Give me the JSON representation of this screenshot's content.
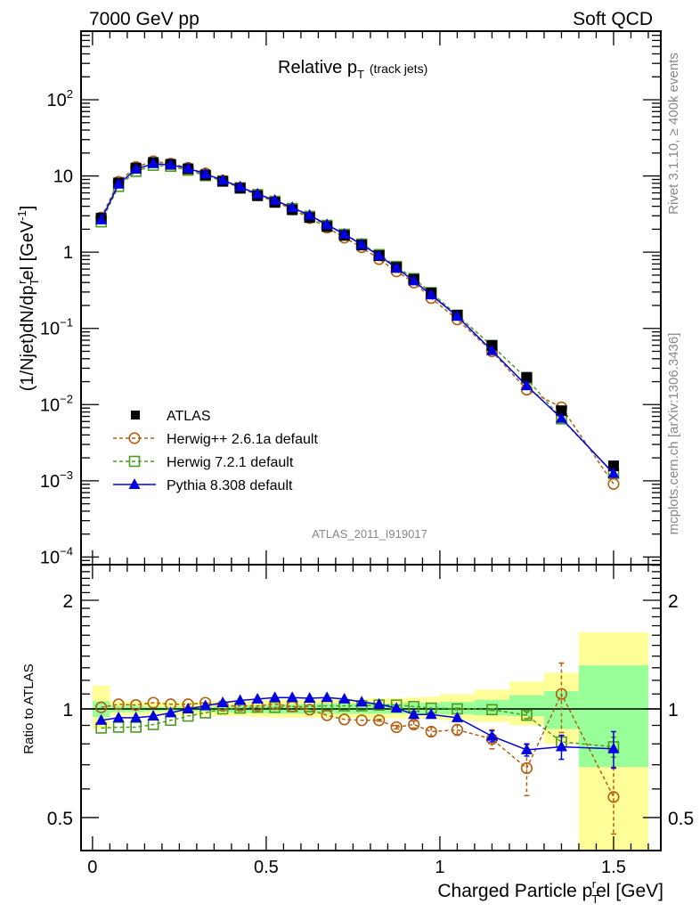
{
  "header": {
    "left": "7000 GeV pp",
    "right": "Soft QCD"
  },
  "side_text": {
    "rivet": "Rivet 3.1.10, ≥ 400k events",
    "mcplots": "mcplots.cern.ch [arXiv:1306.3436]"
  },
  "chart_data": [
    {
      "type": "line",
      "title": "Relative p_T (track jets)",
      "title_main": "Relative p",
      "title_sub": "T",
      "title_extra": "(track jets)",
      "xlabel": "Charged Particle p_T^rel [GeV]",
      "ylabel": "(1/Njet)dN/dp_T^rel [GeV^-1]",
      "yscale": "log",
      "xlim": [
        -0.033,
        1.636
      ],
      "ylim": [
        7.94e-05,
        794
      ],
      "ytick_labels": [
        "10^-4",
        "10^-3",
        "10^-2",
        "10^-1",
        "1",
        "10",
        "10^2"
      ],
      "ytick_values": [
        0.0001,
        0.001,
        0.01,
        0.1,
        1,
        10,
        100
      ],
      "analysis_label": "ATLAS_2011_I919017",
      "legend_position": "middle-left",
      "x": [
        0.025,
        0.075,
        0.125,
        0.175,
        0.225,
        0.275,
        0.325,
        0.375,
        0.425,
        0.475,
        0.525,
        0.575,
        0.625,
        0.675,
        0.725,
        0.775,
        0.825,
        0.875,
        0.925,
        0.975,
        1.05,
        1.15,
        1.25,
        1.35,
        1.5
      ],
      "series": [
        {
          "name": "ATLAS",
          "style": "data",
          "color": "#000000",
          "marker": "square-filled",
          "values": [
            2.8,
            8.1,
            12.7,
            15.0,
            14.2,
            12.4,
            10.3,
            8.5,
            6.9,
            5.5,
            4.5,
            3.6,
            2.85,
            2.17,
            1.66,
            1.24,
            0.9,
            0.63,
            0.44,
            0.29,
            0.149,
            0.06,
            0.0228,
            0.0083,
            0.00157
          ]
        },
        {
          "name": "Herwig++ 2.6.1a default",
          "style": "dashed",
          "color": "#b25f0f",
          "marker": "circle-open",
          "values": [
            2.85,
            8.4,
            13.1,
            15.6,
            14.5,
            12.8,
            10.8,
            8.7,
            7.0,
            5.6,
            4.6,
            3.65,
            2.8,
            2.1,
            1.55,
            1.16,
            0.81,
            0.56,
            0.4,
            0.25,
            0.131,
            0.05,
            0.0157,
            0.0092,
            0.00091
          ]
        },
        {
          "name": "Herwig 7.2.1 default",
          "style": "dashed",
          "color": "#4c9a1e",
          "marker": "square-open",
          "values": [
            2.5,
            7.3,
            11.5,
            13.8,
            13.4,
            11.9,
            10.1,
            8.6,
            7.0,
            5.7,
            4.65,
            3.75,
            2.95,
            2.25,
            1.72,
            1.28,
            0.93,
            0.65,
            0.45,
            0.295,
            0.149,
            0.059,
            0.022,
            0.0065,
            0.00124
          ]
        },
        {
          "name": "Pythia 8.308 default",
          "style": "solid",
          "color": "#0000e0",
          "marker": "triangle-filled",
          "values": [
            2.65,
            7.8,
            12.3,
            14.5,
            14.0,
            12.6,
            10.6,
            8.8,
            7.2,
            5.8,
            4.8,
            3.85,
            3.05,
            2.3,
            1.72,
            1.26,
            0.9,
            0.62,
            0.42,
            0.275,
            0.144,
            0.051,
            0.0177,
            0.0066,
            0.00125
          ]
        }
      ]
    },
    {
      "type": "line",
      "xlabel": "Charged Particle p_T^rel [GeV]",
      "xlabel_main": "Charged Particle p",
      "xlabel_sub": "T",
      "xlabel_sup": "r",
      "xlabel_tail": "el [GeV]",
      "ylabel": "Ratio to ATLAS",
      "yscale": "log",
      "xlim": [
        -0.033,
        1.636
      ],
      "ylim": [
        0.405,
        2.51
      ],
      "xtick_labels": [
        "0",
        "0.5",
        "1",
        "1.5"
      ],
      "xtick_values": [
        0,
        0.5,
        1,
        1.5
      ],
      "ytick_labels": [
        "0.5",
        "1",
        "2"
      ],
      "ytick_values": [
        0.5,
        1,
        2
      ],
      "reference_line": 1,
      "uncertainty_bands": {
        "bin_edges": [
          0.0,
          0.05,
          0.1,
          0.15,
          0.2,
          0.25,
          0.3,
          0.35,
          0.4,
          0.45,
          0.5,
          0.55,
          0.6,
          0.65,
          0.7,
          0.75,
          0.8,
          0.85,
          0.9,
          0.95,
          1.0,
          1.1,
          1.2,
          1.3,
          1.4,
          1.6
        ],
        "inner_color": "#99ff99",
        "outer_color": "#ffff99",
        "inner_low": [
          0.95,
          0.98,
          0.98,
          0.985,
          0.985,
          0.985,
          0.985,
          0.98,
          0.975,
          0.975,
          0.97,
          0.97,
          0.97,
          0.97,
          0.97,
          0.97,
          0.97,
          0.97,
          0.97,
          0.97,
          0.965,
          0.96,
          0.955,
          0.88,
          0.69
        ],
        "inner_high": [
          1.05,
          1.02,
          1.02,
          1.015,
          1.015,
          1.015,
          1.015,
          1.02,
          1.025,
          1.025,
          1.03,
          1.03,
          1.03,
          1.035,
          1.035,
          1.035,
          1.035,
          1.035,
          1.04,
          1.04,
          1.045,
          1.06,
          1.09,
          1.12,
          1.32
        ],
        "outer_low": [
          0.88,
          0.96,
          0.96,
          0.96,
          0.96,
          0.96,
          0.96,
          0.955,
          0.955,
          0.95,
          0.945,
          0.945,
          0.945,
          0.945,
          0.945,
          0.945,
          0.94,
          0.94,
          0.94,
          0.94,
          0.93,
          0.92,
          0.9,
          0.8,
          0.4
        ],
        "outer_high": [
          1.16,
          1.05,
          1.05,
          1.045,
          1.045,
          1.045,
          1.045,
          1.05,
          1.05,
          1.055,
          1.06,
          1.06,
          1.06,
          1.065,
          1.065,
          1.065,
          1.07,
          1.07,
          1.075,
          1.08,
          1.1,
          1.13,
          1.19,
          1.26,
          1.63
        ]
      },
      "series": [
        {
          "name": "Herwig++ 2.6.1a default",
          "style": "dashed",
          "color": "#b25f0f",
          "marker": "circle-open",
          "values": [
            1.01,
            1.03,
            1.025,
            1.04,
            1.03,
            1.03,
            1.04,
            1.02,
            1.02,
            1.02,
            1.03,
            1.015,
            0.995,
            0.96,
            0.935,
            0.93,
            0.93,
            0.89,
            0.905,
            0.865,
            0.875,
            0.825,
            0.685,
            1.1,
            0.57
          ],
          "errors": [
            0.0,
            0.0,
            0.0,
            0.0,
            0.0,
            0.0,
            0.0,
            0.0,
            0.0,
            0.0,
            0.0,
            0.0,
            0.0,
            0.0,
            0.0,
            0.0,
            0.005,
            0.01,
            0.02,
            0.025,
            0.03,
            0.05,
            0.11,
            0.24,
            0.12
          ]
        },
        {
          "name": "Herwig 7.2.1 default",
          "style": "dashed",
          "color": "#4c9a1e",
          "marker": "square-open",
          "values": [
            0.885,
            0.89,
            0.89,
            0.905,
            0.93,
            0.955,
            0.975,
            1.0,
            1.005,
            1.01,
            1.01,
            1.015,
            1.015,
            1.02,
            1.02,
            1.02,
            1.025,
            1.025,
            1.015,
            1.005,
            1.0,
            0.995,
            0.96,
            0.81,
            0.785
          ],
          "errors": [
            0,
            0,
            0,
            0,
            0,
            0,
            0,
            0,
            0,
            0,
            0,
            0,
            0,
            0,
            0,
            0,
            0,
            0,
            0,
            0,
            0.005,
            0.005,
            0.02,
            0.03,
            0.05
          ]
        },
        {
          "name": "Pythia 8.308 default",
          "style": "solid",
          "color": "#0000e0",
          "marker": "triangle-filled",
          "values": [
            0.93,
            0.945,
            0.945,
            0.955,
            0.975,
            1.0,
            1.02,
            1.04,
            1.055,
            1.065,
            1.075,
            1.075,
            1.07,
            1.075,
            1.065,
            1.045,
            1.03,
            1.005,
            0.965,
            0.965,
            0.945,
            0.84,
            0.77,
            0.785,
            0.775
          ],
          "errors": [
            0,
            0,
            0,
            0,
            0,
            0,
            0,
            0,
            0,
            0,
            0,
            0,
            0,
            0,
            0,
            0,
            0,
            0,
            0.005,
            0.005,
            0.01,
            0.03,
            0.03,
            0.06,
            0.09
          ]
        }
      ]
    }
  ]
}
